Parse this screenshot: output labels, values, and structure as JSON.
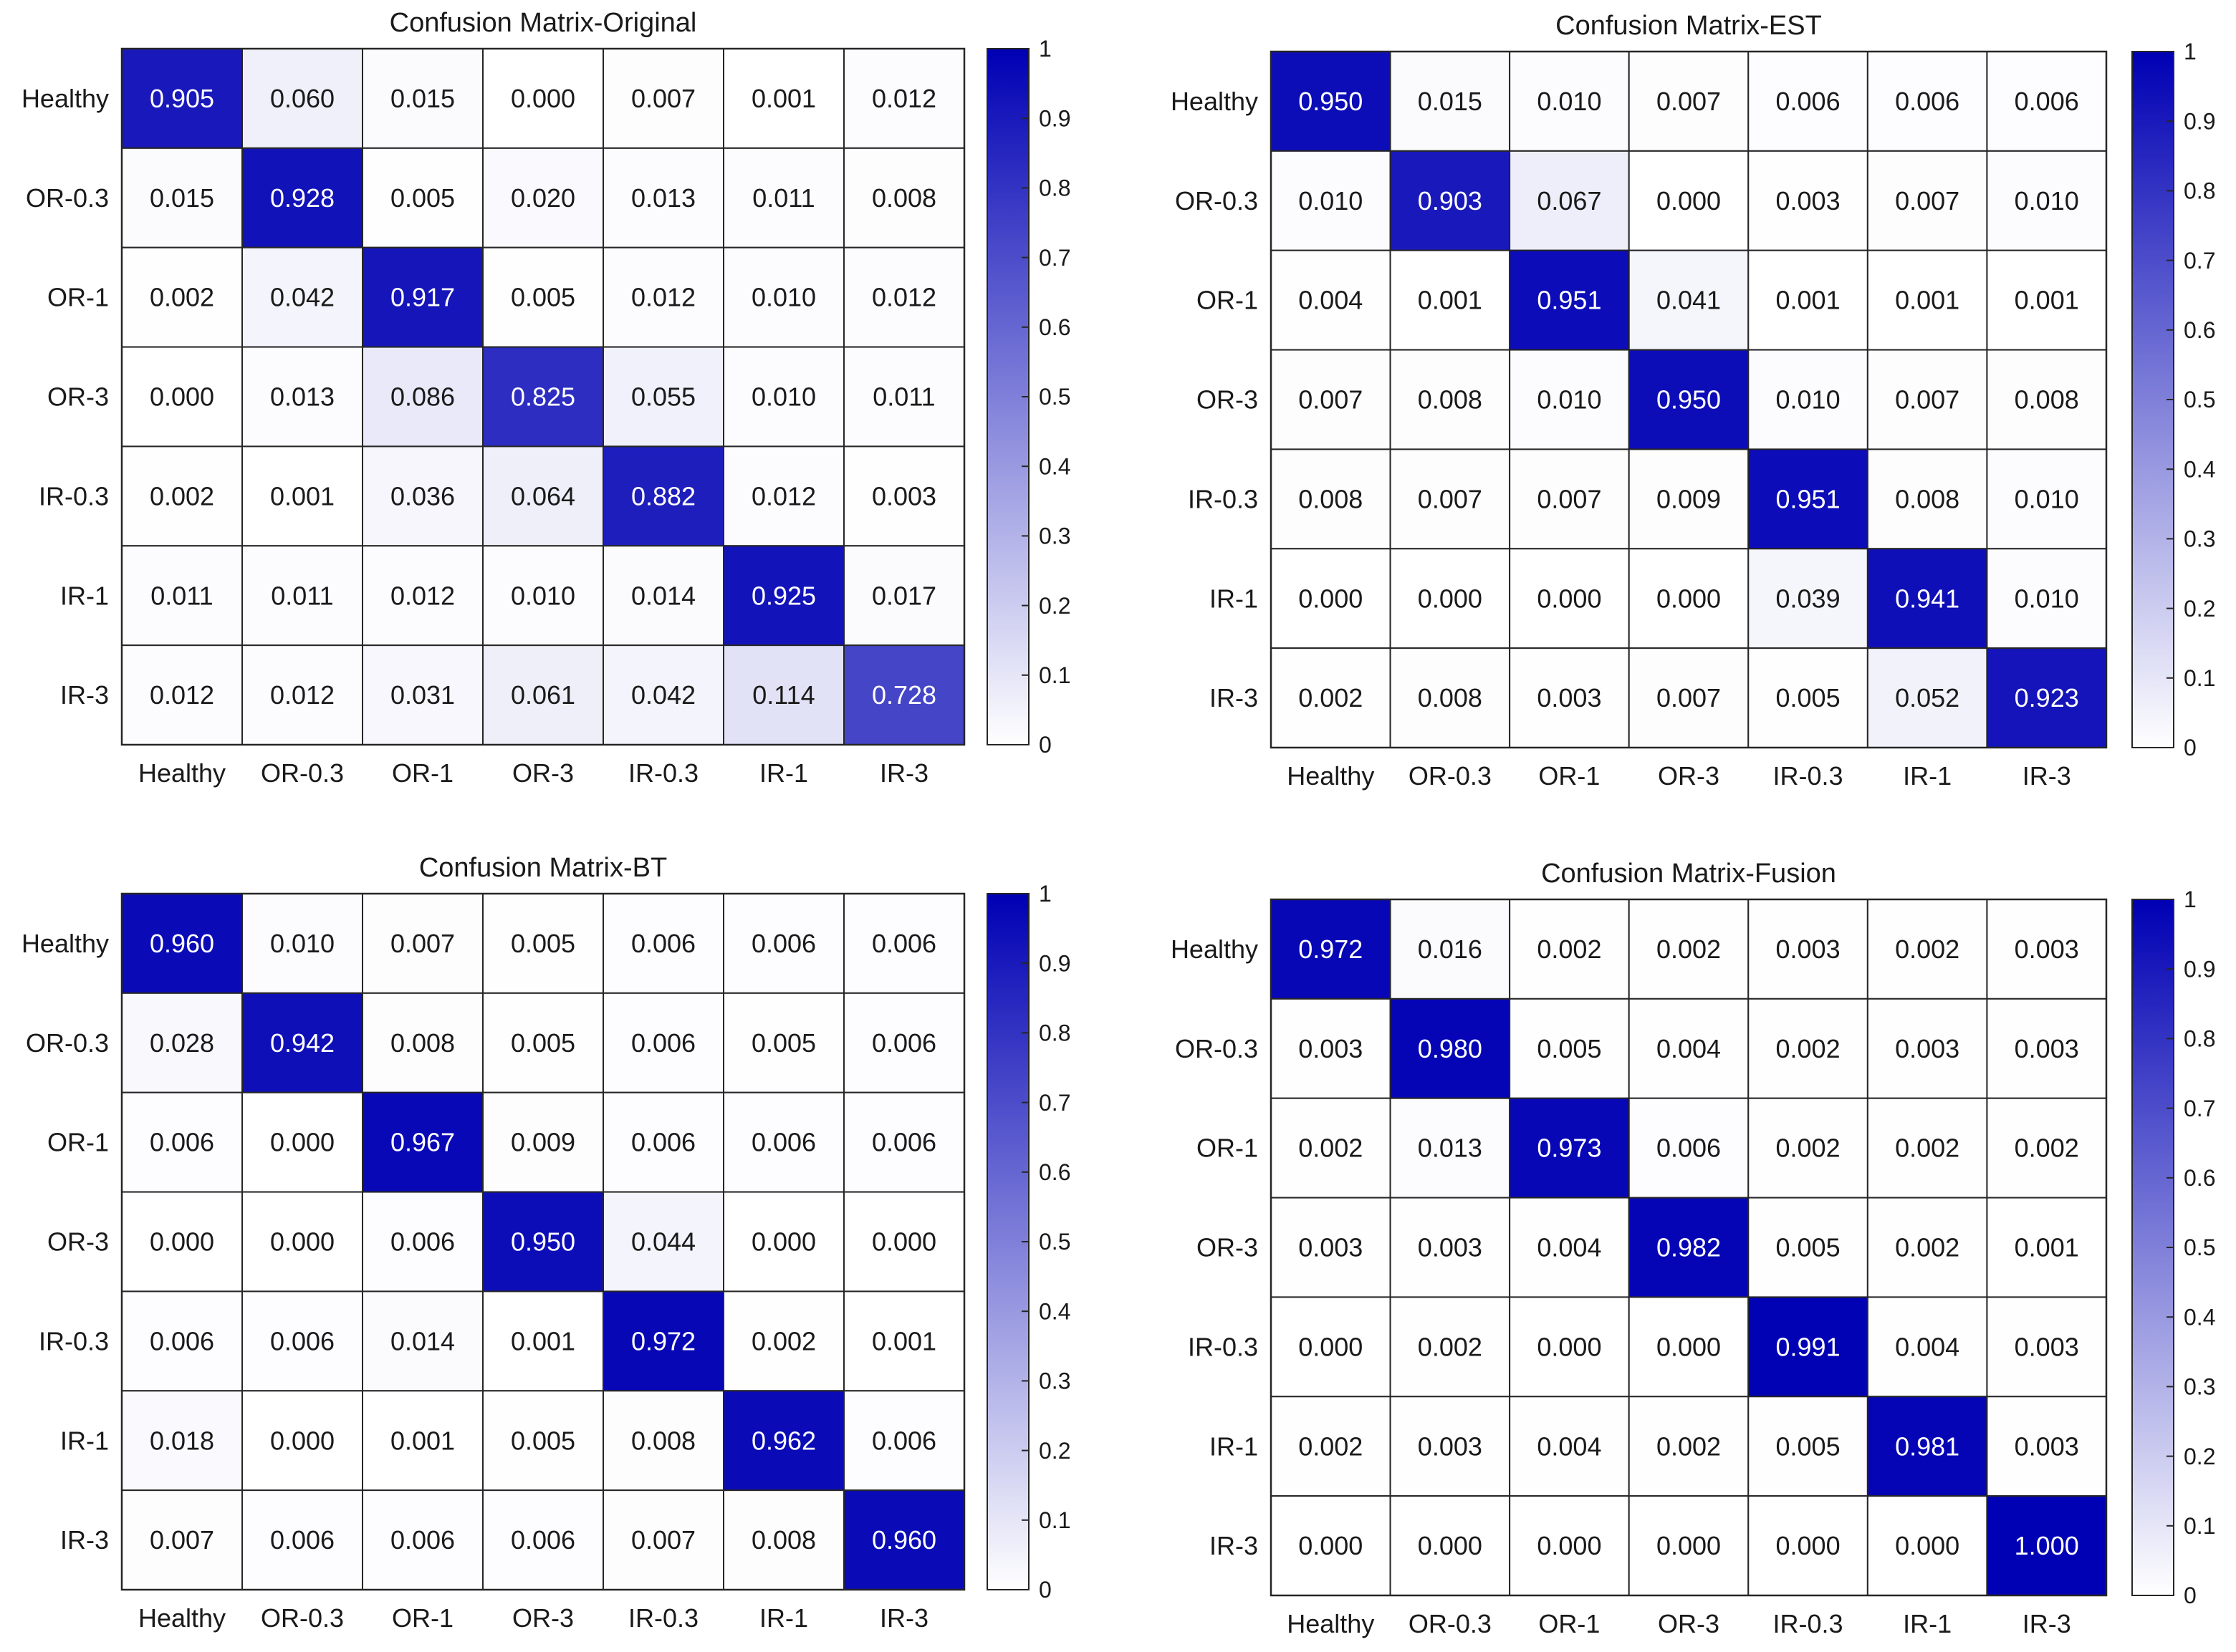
{
  "colors": {
    "low": "#ffffff",
    "high": "#0000b4",
    "grid": "#262626",
    "text_dark": "#1a1a1a",
    "text_light": "#ffffff"
  },
  "chart_data": [
    {
      "type": "heatmap",
      "title": "Confusion Matrix-Original",
      "row_labels": [
        "Healthy",
        "OR-0.3",
        "OR-1",
        "OR-3",
        "IR-0.3",
        "IR-1",
        "IR-3"
      ],
      "col_labels": [
        "Healthy",
        "OR-0.3",
        "OR-1",
        "OR-3",
        "IR-0.3",
        "IR-1",
        "IR-3"
      ],
      "values": [
        [
          "0.905",
          "0.060",
          "0.015",
          "0.000",
          "0.007",
          "0.001",
          "0.012"
        ],
        [
          "0.015",
          "0.928",
          "0.005",
          "0.020",
          "0.013",
          "0.011",
          "0.008"
        ],
        [
          "0.002",
          "0.042",
          "0.917",
          "0.005",
          "0.012",
          "0.010",
          "0.012"
        ],
        [
          "0.000",
          "0.013",
          "0.086",
          "0.825",
          "0.055",
          "0.010",
          "0.011"
        ],
        [
          "0.002",
          "0.001",
          "0.036",
          "0.064",
          "0.882",
          "0.012",
          "0.003"
        ],
        [
          "0.011",
          "0.011",
          "0.012",
          "0.010",
          "0.014",
          "0.925",
          "0.017"
        ],
        [
          "0.012",
          "0.012",
          "0.031",
          "0.061",
          "0.042",
          "0.114",
          "0.728"
        ]
      ],
      "colorbar": {
        "range": [
          0,
          1
        ],
        "ticks": [
          "0",
          "0.1",
          "0.2",
          "0.3",
          "0.4",
          "0.5",
          "0.6",
          "0.7",
          "0.8",
          "0.9",
          "1"
        ]
      }
    },
    {
      "type": "heatmap",
      "title": "Confusion Matrix-EST",
      "row_labels": [
        "Healthy",
        "OR-0.3",
        "OR-1",
        "OR-3",
        "IR-0.3",
        "IR-1",
        "IR-3"
      ],
      "col_labels": [
        "Healthy",
        "OR-0.3",
        "OR-1",
        "OR-3",
        "IR-0.3",
        "IR-1",
        "IR-3"
      ],
      "values": [
        [
          "0.950",
          "0.015",
          "0.010",
          "0.007",
          "0.006",
          "0.006",
          "0.006"
        ],
        [
          "0.010",
          "0.903",
          "0.067",
          "0.000",
          "0.003",
          "0.007",
          "0.010"
        ],
        [
          "0.004",
          "0.001",
          "0.951",
          "0.041",
          "0.001",
          "0.001",
          "0.001"
        ],
        [
          "0.007",
          "0.008",
          "0.010",
          "0.950",
          "0.010",
          "0.007",
          "0.008"
        ],
        [
          "0.008",
          "0.007",
          "0.007",
          "0.009",
          "0.951",
          "0.008",
          "0.010"
        ],
        [
          "0.000",
          "0.000",
          "0.000",
          "0.000",
          "0.039",
          "0.941",
          "0.010"
        ],
        [
          "0.002",
          "0.008",
          "0.003",
          "0.007",
          "0.005",
          "0.052",
          "0.923"
        ]
      ],
      "colorbar": {
        "range": [
          0,
          1
        ],
        "ticks": [
          "0",
          "0.1",
          "0.2",
          "0.3",
          "0.4",
          "0.5",
          "0.6",
          "0.7",
          "0.8",
          "0.9",
          "1"
        ]
      }
    },
    {
      "type": "heatmap",
      "title": "Confusion Matrix-BT",
      "row_labels": [
        "Healthy",
        "OR-0.3",
        "OR-1",
        "OR-3",
        "IR-0.3",
        "IR-1",
        "IR-3"
      ],
      "col_labels": [
        "Healthy",
        "OR-0.3",
        "OR-1",
        "OR-3",
        "IR-0.3",
        "IR-1",
        "IR-3"
      ],
      "values": [
        [
          "0.960",
          "0.010",
          "0.007",
          "0.005",
          "0.006",
          "0.006",
          "0.006"
        ],
        [
          "0.028",
          "0.942",
          "0.008",
          "0.005",
          "0.006",
          "0.005",
          "0.006"
        ],
        [
          "0.006",
          "0.000",
          "0.967",
          "0.009",
          "0.006",
          "0.006",
          "0.006"
        ],
        [
          "0.000",
          "0.000",
          "0.006",
          "0.950",
          "0.044",
          "0.000",
          "0.000"
        ],
        [
          "0.006",
          "0.006",
          "0.014",
          "0.001",
          "0.972",
          "0.002",
          "0.001"
        ],
        [
          "0.018",
          "0.000",
          "0.001",
          "0.005",
          "0.008",
          "0.962",
          "0.006"
        ],
        [
          "0.007",
          "0.006",
          "0.006",
          "0.006",
          "0.007",
          "0.008",
          "0.960"
        ]
      ],
      "colorbar": {
        "range": [
          0,
          1
        ],
        "ticks": [
          "0",
          "0.1",
          "0.2",
          "0.3",
          "0.4",
          "0.5",
          "0.6",
          "0.7",
          "0.8",
          "0.9",
          "1"
        ]
      }
    },
    {
      "type": "heatmap",
      "title": "Confusion Matrix-Fusion",
      "row_labels": [
        "Healthy",
        "OR-0.3",
        "OR-1",
        "OR-3",
        "IR-0.3",
        "IR-1",
        "IR-3"
      ],
      "col_labels": [
        "Healthy",
        "OR-0.3",
        "OR-1",
        "OR-3",
        "IR-0.3",
        "IR-1",
        "IR-3"
      ],
      "values": [
        [
          "0.972",
          "0.016",
          "0.002",
          "0.002",
          "0.003",
          "0.002",
          "0.003"
        ],
        [
          "0.003",
          "0.980",
          "0.005",
          "0.004",
          "0.002",
          "0.003",
          "0.003"
        ],
        [
          "0.002",
          "0.013",
          "0.973",
          "0.006",
          "0.002",
          "0.002",
          "0.002"
        ],
        [
          "0.003",
          "0.003",
          "0.004",
          "0.982",
          "0.005",
          "0.002",
          "0.001"
        ],
        [
          "0.000",
          "0.002",
          "0.000",
          "0.000",
          "0.991",
          "0.004",
          "0.003"
        ],
        [
          "0.002",
          "0.003",
          "0.004",
          "0.002",
          "0.005",
          "0.981",
          "0.003"
        ],
        [
          "0.000",
          "0.000",
          "0.000",
          "0.000",
          "0.000",
          "0.000",
          "1.000"
        ]
      ],
      "colorbar": {
        "range": [
          0,
          1
        ],
        "ticks": [
          "0",
          "0.1",
          "0.2",
          "0.3",
          "0.4",
          "0.5",
          "0.6",
          "0.7",
          "0.8",
          "0.9",
          "1"
        ]
      }
    }
  ]
}
